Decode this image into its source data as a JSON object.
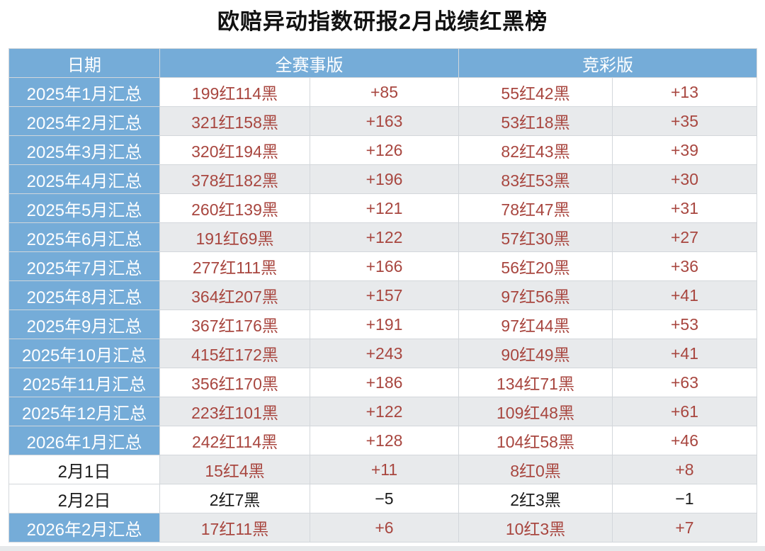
{
  "chart_data": {
    "type": "table",
    "title": "欧赔异动指数研报2月战绩红黑榜",
    "header": {
      "date": "日期",
      "all_matches": "全赛事版",
      "jingcai": "竞彩版"
    },
    "rows": [
      {
        "date": "2025年1月汇总",
        "all_record": "199红114黑",
        "all_net": "+85",
        "jc_record": "55红42黑",
        "jc_net": "+13",
        "summary": true,
        "text_color": "red"
      },
      {
        "date": "2025年2月汇总",
        "all_record": "321红158黑",
        "all_net": "+163",
        "jc_record": "53红18黑",
        "jc_net": "+35",
        "summary": true,
        "text_color": "red"
      },
      {
        "date": "2025年3月汇总",
        "all_record": "320红194黑",
        "all_net": "+126",
        "jc_record": "82红43黑",
        "jc_net": "+39",
        "summary": true,
        "text_color": "red"
      },
      {
        "date": "2025年4月汇总",
        "all_record": "378红182黑",
        "all_net": "+196",
        "jc_record": "83红53黑",
        "jc_net": "+30",
        "summary": true,
        "text_color": "red"
      },
      {
        "date": "2025年5月汇总",
        "all_record": "260红139黑",
        "all_net": "+121",
        "jc_record": "78红47黑",
        "jc_net": "+31",
        "summary": true,
        "text_color": "red"
      },
      {
        "date": "2025年6月汇总",
        "all_record": "191红69黑",
        "all_net": "+122",
        "jc_record": "57红30黑",
        "jc_net": "+27",
        "summary": true,
        "text_color": "red"
      },
      {
        "date": "2025年7月汇总",
        "all_record": "277红111黑",
        "all_net": "+166",
        "jc_record": "56红20黑",
        "jc_net": "+36",
        "summary": true,
        "text_color": "red"
      },
      {
        "date": "2025年8月汇总",
        "all_record": "364红207黑",
        "all_net": "+157",
        "jc_record": "97红56黑",
        "jc_net": "+41",
        "summary": true,
        "text_color": "red"
      },
      {
        "date": "2025年9月汇总",
        "all_record": "367红176黑",
        "all_net": "+191",
        "jc_record": "97红44黑",
        "jc_net": "+53",
        "summary": true,
        "text_color": "red"
      },
      {
        "date": "2025年10月汇总",
        "all_record": "415红172黑",
        "all_net": "+243",
        "jc_record": "90红49黑",
        "jc_net": "+41",
        "summary": true,
        "text_color": "red"
      },
      {
        "date": "2025年11月汇总",
        "all_record": "356红170黑",
        "all_net": "+186",
        "jc_record": "134红71黑",
        "jc_net": "+63",
        "summary": true,
        "text_color": "red"
      },
      {
        "date": "2025年12月汇总",
        "all_record": "223红101黑",
        "all_net": "+122",
        "jc_record": "109红48黑",
        "jc_net": "+61",
        "summary": true,
        "text_color": "red"
      },
      {
        "date": "2026年1月汇总",
        "all_record": "242红114黑",
        "all_net": "+128",
        "jc_record": "104红58黑",
        "jc_net": "+46",
        "summary": true,
        "text_color": "red"
      },
      {
        "date": "2月1日",
        "all_record": "15红4黑",
        "all_net": "+11",
        "jc_record": "8红0黑",
        "jc_net": "+8",
        "summary": false,
        "text_color": "red"
      },
      {
        "date": "2月2日",
        "all_record": "2红7黑",
        "all_net": "−5",
        "jc_record": "2红3黑",
        "jc_net": "−1",
        "summary": false,
        "text_color": "black"
      },
      {
        "date": "2026年2月汇总",
        "all_record": "17红11黑",
        "all_net": "+6",
        "jc_record": "10红3黑",
        "jc_net": "+7",
        "summary": true,
        "text_color": "red"
      }
    ],
    "layout": {
      "grid": true,
      "striped": true,
      "stripe_pattern": "odd-white-even-gray"
    }
  },
  "colors": {
    "header_blue": "#75acd8",
    "stripe_gray": "#e8eaec",
    "value_red": "#a8463f",
    "value_black": "#1a1a1a",
    "border": "#d3d7db",
    "header_text": "#ffffff"
  }
}
